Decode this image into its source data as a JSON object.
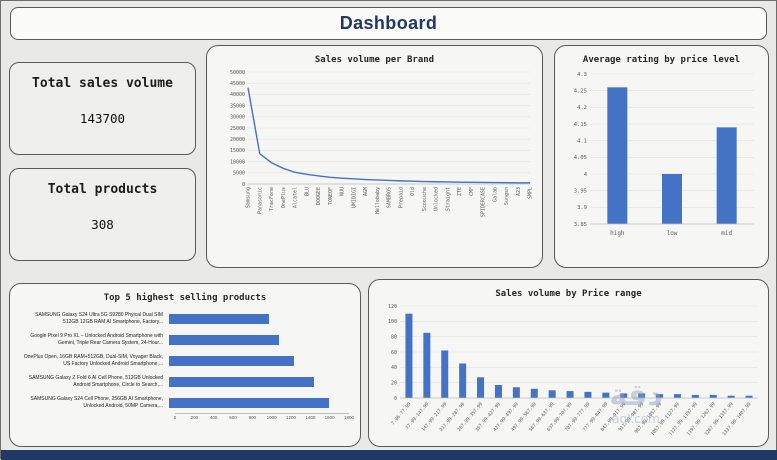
{
  "header": {
    "title": "Dashboard"
  },
  "kpis": [
    {
      "label": "Total sales volume",
      "value": "143700"
    },
    {
      "label": "Total products",
      "value": "308"
    }
  ],
  "accent_color": "#4472c4",
  "footer_color": "#1f3864",
  "watermark": {
    "line1": "دقة",
    "line2": "aql.com"
  },
  "chart_data": [
    {
      "type": "line",
      "title": "Sales volume per Brand",
      "categories": [
        "Samsung",
        "Panasonic",
        "TracFone",
        "OnePlus",
        "Alcatel",
        "BLU",
        "DOOGEE",
        "TONEOF",
        "NUU",
        "UMIDIGI",
        "AGM",
        "Hellobaby",
        "SAMBROS",
        "Prepaid",
        "Old",
        "Scoouche",
        "Unlocked",
        "Straight",
        "ZTE",
        "CMF",
        "SPIDERCASE",
        "Galab",
        "Sungsn",
        "A23",
        "SMPL"
      ],
      "values": [
        43000,
        13500,
        9500,
        7000,
        5200,
        4300,
        3600,
        3000,
        2600,
        2300,
        2000,
        1800,
        1600,
        1400,
        1250,
        1100,
        1000,
        900,
        800,
        750,
        700,
        650,
        600,
        550,
        500
      ],
      "ylim": [
        0,
        50000
      ],
      "yticks": [
        "0",
        "5000",
        "10000",
        "15000",
        "20000",
        "25000",
        "30000",
        "35000",
        "40000",
        "45000",
        "50000"
      ],
      "grid": true,
      "legend": "none"
    },
    {
      "type": "bar",
      "title": "Average rating by price level",
      "categories": [
        "high",
        "low",
        "mid"
      ],
      "values": [
        4.26,
        4.0,
        4.14
      ],
      "ylim": [
        3.85,
        4.3
      ],
      "yticks": [
        "3.85",
        "3.9",
        "3.95",
        "4",
        "4.05",
        "4.1",
        "4.15",
        "4.2",
        "4.25",
        "4.3"
      ],
      "grid": true,
      "legend": "none"
    },
    {
      "type": "hbar",
      "title": "Top 5 highest selling products",
      "categories": [
        "SAMSUNG Galaxy S24 Ultra 5G S9280 Phyical Dual SIM 512GB 12GB RAM AI Smartphone, Factory...",
        "Google Pixel 9 Pro XL – Unlocked Android Smartphone with Gemini, Triple Rear Camera System, 24-Hour...",
        "OnePlus Open, 16GB RAM+512GB, Dual-SIM, Voyager Black, US Factory Unlocked Android Smartphone,...",
        "SAMSUNG Galaxy Z Fold 6 AI Cell Phone, 512GB Unlocked Android Smartphone, Circle to Search,...",
        "SAMSUNG Galaxy S24 Cell Phone, 256GB AI Smartphone, Unlocked Android, 50MP Camera,..."
      ],
      "values": [
        1000,
        1100,
        1250,
        1450,
        1600
      ],
      "xlim": [
        0,
        1800
      ],
      "xticks": [
        "0",
        "200",
        "400",
        "600",
        "800",
        "1000",
        "1200",
        "1400",
        "1600",
        "1800"
      ],
      "grid": false,
      "legend": "none"
    },
    {
      "type": "bar",
      "title": "Sales volume by Price range",
      "categories": [
        "7.96-77.99",
        "77.99-147.99",
        "147.99-217.99",
        "217.99-287.99",
        "287.99-357.99",
        "357.99-427.99",
        "427.99-497.99",
        "497.99-567.99",
        "567.99-637.99",
        "637.99-707.99",
        "707.99-777.99",
        "777.99-847.99",
        "847.99-917.99",
        "917.99-987.99",
        "987.99-1057.99",
        "1057.99-1127.99",
        "1127.99-1197.99",
        "1197.99-1267.99",
        "1267.99-1337.99",
        "1337.99-1407.99"
      ],
      "values": [
        110,
        85,
        62,
        45,
        27,
        17,
        14,
        12,
        10,
        9,
        8,
        7,
        6,
        6,
        5,
        5,
        4,
        4,
        3,
        3
      ],
      "ylim": [
        0,
        120
      ],
      "yticks": [
        "0",
        "20",
        "40",
        "60",
        "80",
        "100",
        "120"
      ],
      "label_rotate": true,
      "grid": true,
      "legend": "none"
    }
  ]
}
